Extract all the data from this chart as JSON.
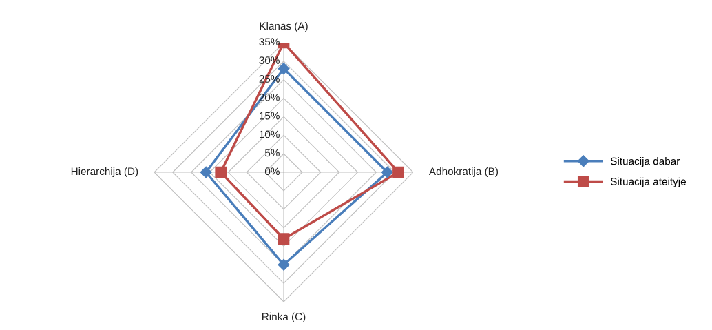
{
  "chart_data": {
    "type": "radar",
    "categories": [
      "Klanas (A)",
      "Adhokratija (B)",
      "Rinka (C)",
      "Hierarchija (D)"
    ],
    "series": [
      {
        "name": "Situacija dabar",
        "color": "#4a7ebb",
        "marker": "diamond",
        "values": [
          28,
          28,
          25,
          21
        ]
      },
      {
        "name": "Situacija ateityje",
        "color": "#be4b48",
        "marker": "square",
        "values": [
          35,
          31,
          18,
          17
        ]
      }
    ],
    "ylim": [
      0,
      35
    ],
    "yticks": [
      {
        "value": 0,
        "label": "0%"
      },
      {
        "value": 5,
        "label": "5%"
      },
      {
        "value": 10,
        "label": "10%"
      },
      {
        "value": 15,
        "label": "15%"
      },
      {
        "value": 20,
        "label": "20%"
      },
      {
        "value": 25,
        "label": "25%"
      },
      {
        "value": 30,
        "label": "30%"
      },
      {
        "value": 35,
        "label": "35%"
      }
    ],
    "grid": true,
    "legend": "right"
  }
}
